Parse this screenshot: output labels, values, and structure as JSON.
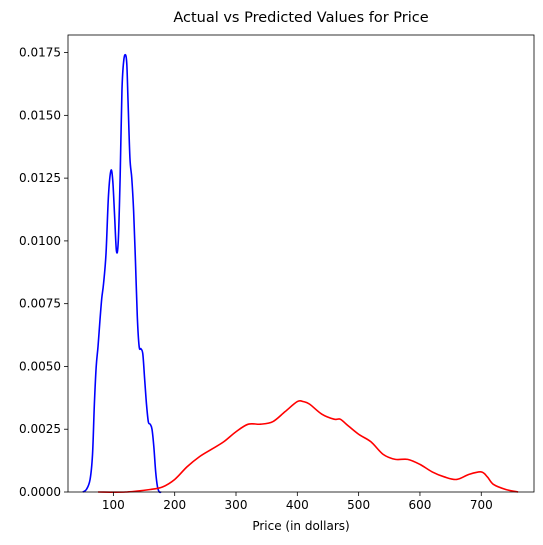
{
  "chart_data": {
    "type": "line",
    "title": "Actual vs Predicted Values for Price",
    "xlabel": "Price (in dollars)",
    "ylabel": "",
    "xlim": [
      26,
      786
    ],
    "ylim": [
      0,
      0.0182
    ],
    "x_ticks": [
      100,
      200,
      300,
      400,
      500,
      600,
      700
    ],
    "y_ticks": [
      0.0,
      0.0025,
      0.005,
      0.0075,
      0.01,
      0.0125,
      0.015,
      0.0175
    ],
    "y_tick_labels": [
      "0.0000",
      "0.0025",
      "0.0050",
      "0.0075",
      "0.0100",
      "0.0125",
      "0.0150",
      "0.0175"
    ],
    "grid": false,
    "series": [
      {
        "color": "#0000ff",
        "x": [
          50,
          56,
          62,
          66,
          69,
          72,
          75,
          78,
          81,
          84,
          88,
          92,
          96,
          99,
          102,
          105,
          108,
          111,
          114,
          117,
          120,
          122,
          124,
          127,
          130,
          133,
          136,
          139,
          142,
          145,
          148,
          151,
          154,
          157,
          160,
          163,
          166,
          169,
          172,
          175,
          178
        ],
        "y": [
          0.0,
          0.0001,
          0.0005,
          0.0015,
          0.0035,
          0.005,
          0.0058,
          0.0068,
          0.0077,
          0.0083,
          0.0095,
          0.0118,
          0.0128,
          0.0124,
          0.011,
          0.0096,
          0.01,
          0.0125,
          0.016,
          0.0172,
          0.0174,
          0.017,
          0.0155,
          0.0133,
          0.0125,
          0.0112,
          0.0092,
          0.007,
          0.0058,
          0.0057,
          0.0055,
          0.0045,
          0.0035,
          0.0028,
          0.0027,
          0.0025,
          0.0018,
          0.0008,
          0.0002,
          0.0,
          0.0
        ]
      },
      {
        "color": "#ff0000",
        "x": [
          75,
          120,
          160,
          180,
          200,
          220,
          240,
          260,
          280,
          300,
          320,
          340,
          360,
          380,
          400,
          410,
          420,
          440,
          460,
          470,
          480,
          500,
          520,
          540,
          560,
          580,
          600,
          620,
          640,
          660,
          680,
          700,
          710,
          720,
          740,
          760
        ],
        "y": [
          0.0,
          0.0,
          0.0001,
          0.0002,
          0.0005,
          0.001,
          0.0014,
          0.0017,
          0.002,
          0.0024,
          0.0027,
          0.0027,
          0.0028,
          0.0032,
          0.0036,
          0.0036,
          0.0035,
          0.0031,
          0.0029,
          0.0029,
          0.0027,
          0.0023,
          0.002,
          0.0015,
          0.0013,
          0.0013,
          0.0011,
          0.0008,
          0.0006,
          0.0005,
          0.0007,
          0.0008,
          0.0006,
          0.0003,
          0.0001,
          0.0
        ]
      }
    ]
  }
}
